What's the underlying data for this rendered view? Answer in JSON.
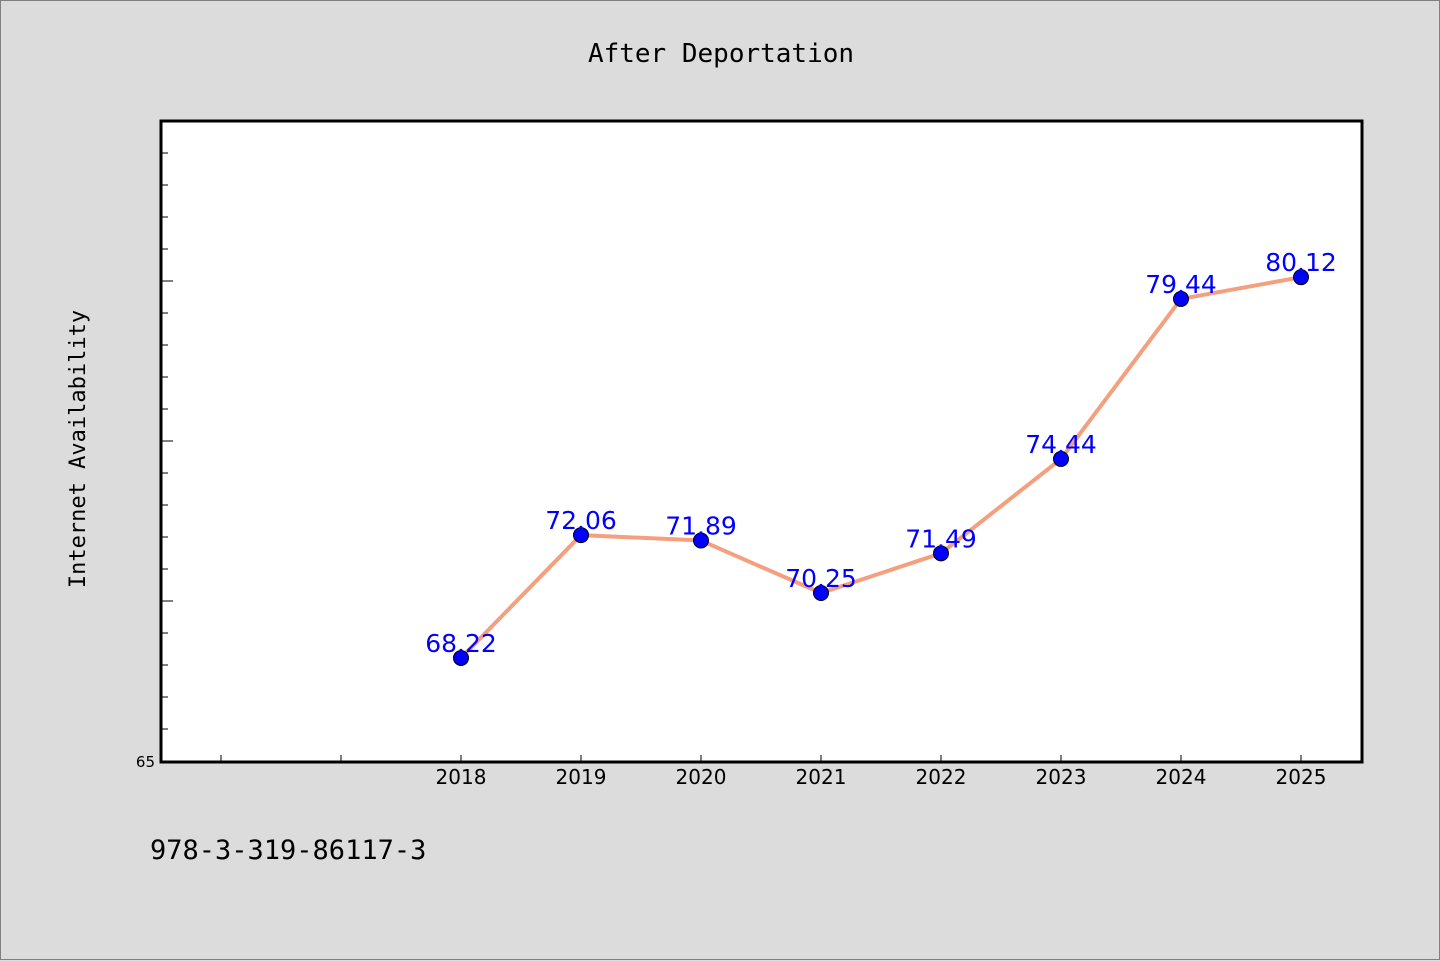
{
  "chart_data": {
    "type": "line",
    "title": "After Deportation",
    "ylabel": "Internet Availability",
    "xlabel": "",
    "ylim": [
      65,
      85
    ],
    "y_tick_labels": [
      "65"
    ],
    "x": [
      "2018",
      "2019",
      "2020",
      "2021",
      "2022",
      "2023",
      "2024",
      "2025"
    ],
    "values": [
      68.22,
      72.06,
      71.89,
      70.25,
      71.49,
      74.44,
      79.44,
      80.12
    ],
    "data_labels": [
      "68.22",
      "72.06",
      "71.89",
      "70.25",
      "71.49",
      "74.44",
      "79.44",
      "80.12"
    ],
    "grid": false,
    "colors": {
      "line": "#f4a07f",
      "marker": "#0000ff",
      "label": "#0000ff"
    }
  },
  "footer": {
    "code": "978-3-319-86117-3"
  }
}
